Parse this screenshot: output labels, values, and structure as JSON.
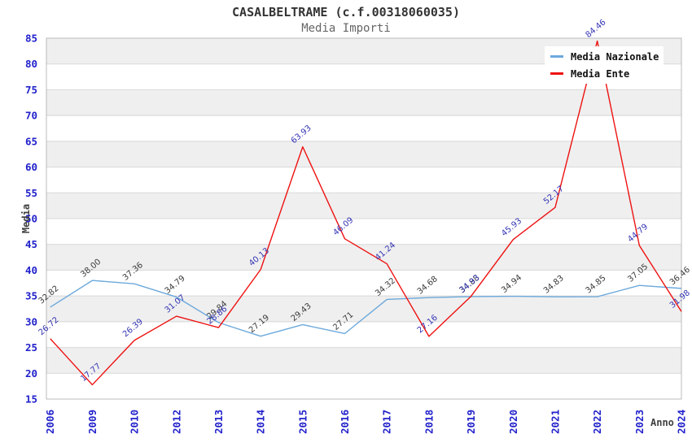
{
  "title": "CASALBELTRAME (c.f.00318060035)",
  "subtitle": "Media Importi",
  "legend": {
    "items": [
      {
        "label": "Media Nazionale",
        "color": "#6CA9DC"
      },
      {
        "label": "Media Ente",
        "color": "#EE1111"
      }
    ]
  },
  "chart_data": {
    "type": "line",
    "categories": [
      "2006",
      "2009",
      "2010",
      "2012",
      "2013",
      "2014",
      "2015",
      "2016",
      "2017",
      "2018",
      "2019",
      "2020",
      "2021",
      "2022",
      "2023",
      "2024"
    ],
    "series": [
      {
        "name": "Media Nazionale",
        "color": "#6CA9DC",
        "label_color": "#3A3A3A",
        "values": [
          32.82,
          38.0,
          37.36,
          34.79,
          29.84,
          27.19,
          29.43,
          27.71,
          34.32,
          34.68,
          34.88,
          34.94,
          34.83,
          34.85,
          37.05,
          36.46
        ]
      },
      {
        "name": "Media Ente",
        "color": "#EE1111",
        "label_color": "#3434B4",
        "values": [
          26.72,
          17.77,
          26.39,
          31.07,
          28.86,
          40.13,
          63.93,
          46.09,
          41.24,
          27.16,
          34.93,
          45.93,
          52.17,
          84.46,
          44.79,
          31.98
        ]
      }
    ],
    "ylim": [
      15,
      85
    ],
    "y_ticks": [
      15,
      20,
      25,
      30,
      35,
      40,
      45,
      50,
      55,
      60,
      65,
      70,
      75,
      80,
      85
    ],
    "ylabel": "Media",
    "xlabel": "Anno",
    "grid": true,
    "legend_position": "top-right",
    "value_decimals": 2
  },
  "colors": {
    "tick_label": "#2121CC",
    "band": "#EFEFEF",
    "grid": "#D8D8D8",
    "border": "#BBBBBB",
    "title": "#333333",
    "subtitle": "#666666",
    "axis_title": "#404040"
  }
}
